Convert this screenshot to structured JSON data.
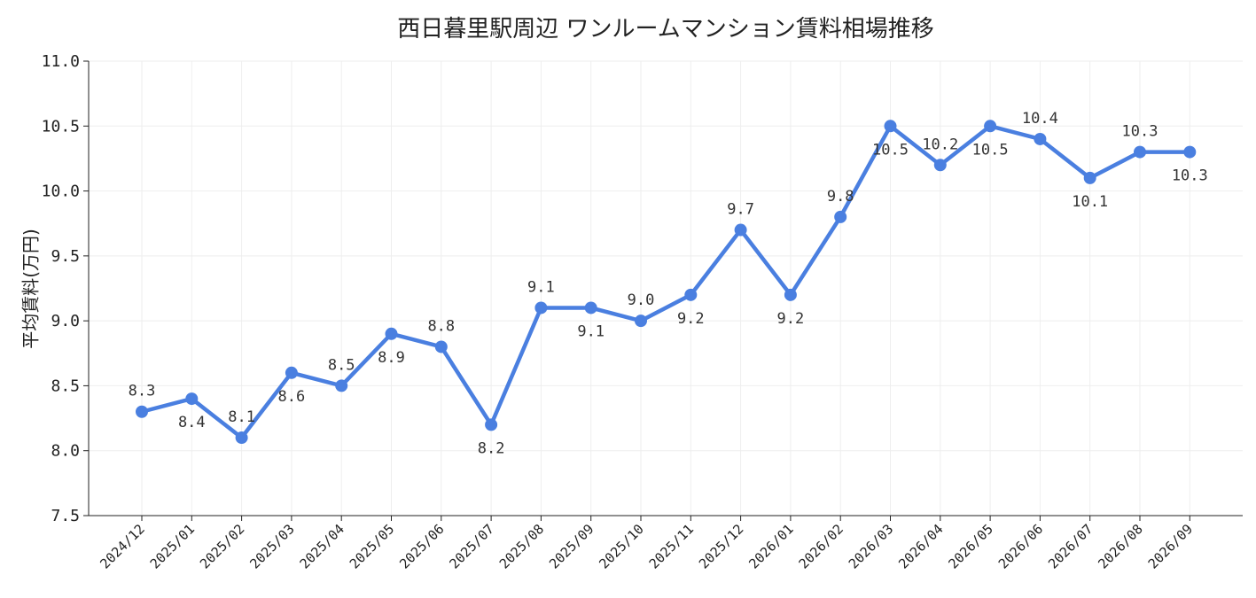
{
  "chart_data": {
    "type": "line",
    "title": "西日暮里駅周辺 ワンルームマンション賃料相場推移",
    "xlabel": "",
    "ylabel": "平均賃料(万円)",
    "ylim": [
      7.5,
      11.0
    ],
    "yticks": [
      "7.5",
      "8.0",
      "8.5",
      "9.0",
      "9.5",
      "10.0",
      "10.5",
      "11.0"
    ],
    "grid": true,
    "categories": [
      "2024/12",
      "2025/01",
      "2025/02",
      "2025/03",
      "2025/04",
      "2025/05",
      "2025/06",
      "2025/07",
      "2025/08",
      "2025/09",
      "2025/10",
      "2025/11",
      "2025/12",
      "2026/01",
      "2026/02",
      "2026/03",
      "2026/04",
      "2026/05",
      "2026/06",
      "2026/07",
      "2026/08",
      "2026/09"
    ],
    "series": [
      {
        "values": [
          8.3,
          8.4,
          8.1,
          8.6,
          8.5,
          8.9,
          8.8,
          8.2,
          9.1,
          9.1,
          9.0,
          9.2,
          9.7,
          9.2,
          9.8,
          10.5,
          10.2,
          10.5,
          10.4,
          10.1,
          10.3,
          10.3
        ],
        "color": "#4a7fe0"
      }
    ],
    "data_labels": [
      "8.3",
      "8.4",
      "8.1",
      "8.6",
      "8.5",
      "8.9",
      "8.8",
      "8.2",
      "9.1",
      "9.1",
      "9.0",
      "9.2",
      "9.7",
      "9.2",
      "9.8",
      "10.5",
      "10.2",
      "10.5",
      "10.4",
      "10.1",
      "10.3",
      "10.3"
    ],
    "data_label_positions": [
      "above",
      "below",
      "above",
      "below",
      "above",
      "below",
      "above",
      "below",
      "above",
      "below",
      "above",
      "below",
      "above",
      "below",
      "above",
      "below",
      "above",
      "below",
      "above",
      "below",
      "above",
      "below"
    ]
  }
}
